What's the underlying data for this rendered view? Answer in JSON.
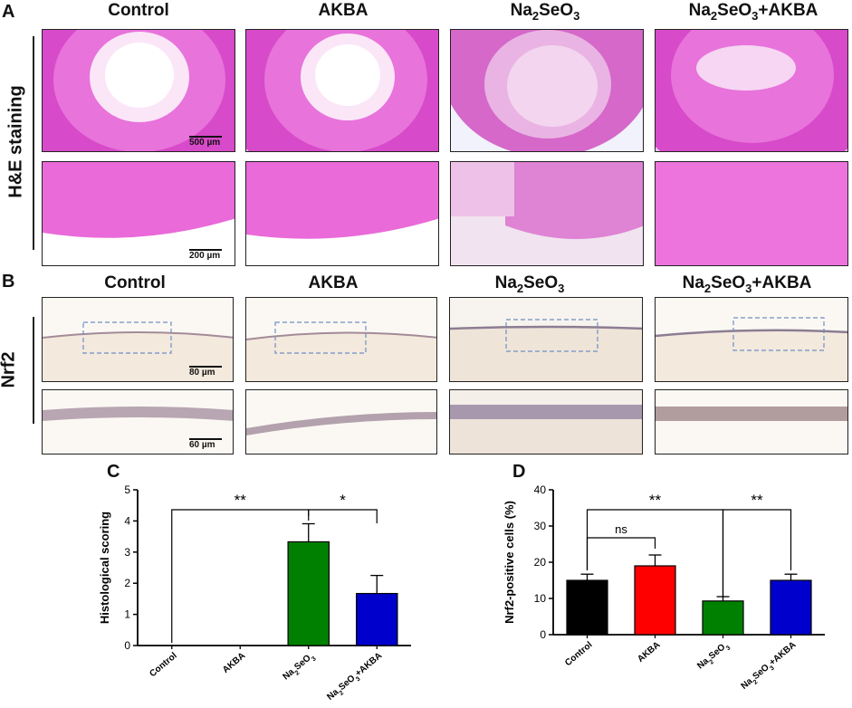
{
  "figure": {
    "panel_a": {
      "letter": "A",
      "row_label": "H&E staining",
      "groups": [
        "Control",
        "AKBA",
        "Na2SeO3",
        "Na2SeO3+AKBA"
      ],
      "scale_top": "500 µm",
      "scale_bottom": "200 µm"
    },
    "panel_b": {
      "letter": "B",
      "row_label": "Nrf2",
      "groups": [
        "Control",
        "AKBA",
        "Na2SeO3",
        "Na2SeO3+AKBA"
      ],
      "scale_top": "80 µm",
      "scale_bottom": "60 µm"
    },
    "panel_c": {
      "letter": "C"
    },
    "panel_d": {
      "letter": "D"
    }
  },
  "chart_data": [
    {
      "type": "bar",
      "panel": "C",
      "categories": [
        "Control",
        "AKBA",
        "Na2SeO3",
        "Na2SeO3+AKBA"
      ],
      "values": [
        0,
        0,
        3.33,
        1.67
      ],
      "errors": [
        0,
        0,
        0.58,
        0.58
      ],
      "colors": [
        "#000000",
        "#ff0000",
        "#008000",
        "#0000cc"
      ],
      "ylabel": "Histological scoring",
      "ylim": [
        0,
        5
      ],
      "yticks": [
        0,
        1,
        2,
        3,
        4,
        5
      ],
      "significance": [
        {
          "from": 0,
          "to": 2,
          "label": "**"
        },
        {
          "from": 2,
          "to": 3,
          "label": "*"
        }
      ]
    },
    {
      "type": "bar",
      "panel": "D",
      "categories": [
        "Control",
        "AKBA",
        "Na2SeO3",
        "Na2SeO3+AKBA"
      ],
      "values": [
        15,
        19,
        9.3,
        15
      ],
      "errors": [
        1.7,
        3,
        1.2,
        1.7
      ],
      "colors": [
        "#000000",
        "#ff0000",
        "#008000",
        "#0000cc"
      ],
      "ylabel": "Nrf2-positive cells (%)",
      "ylim": [
        0,
        40
      ],
      "yticks": [
        0,
        10,
        20,
        30,
        40
      ],
      "significance": [
        {
          "from": 0,
          "to": 1,
          "label": "ns"
        },
        {
          "from": 0,
          "to": 2,
          "label": "**"
        },
        {
          "from": 2,
          "to": 3,
          "label": "**"
        }
      ]
    }
  ]
}
